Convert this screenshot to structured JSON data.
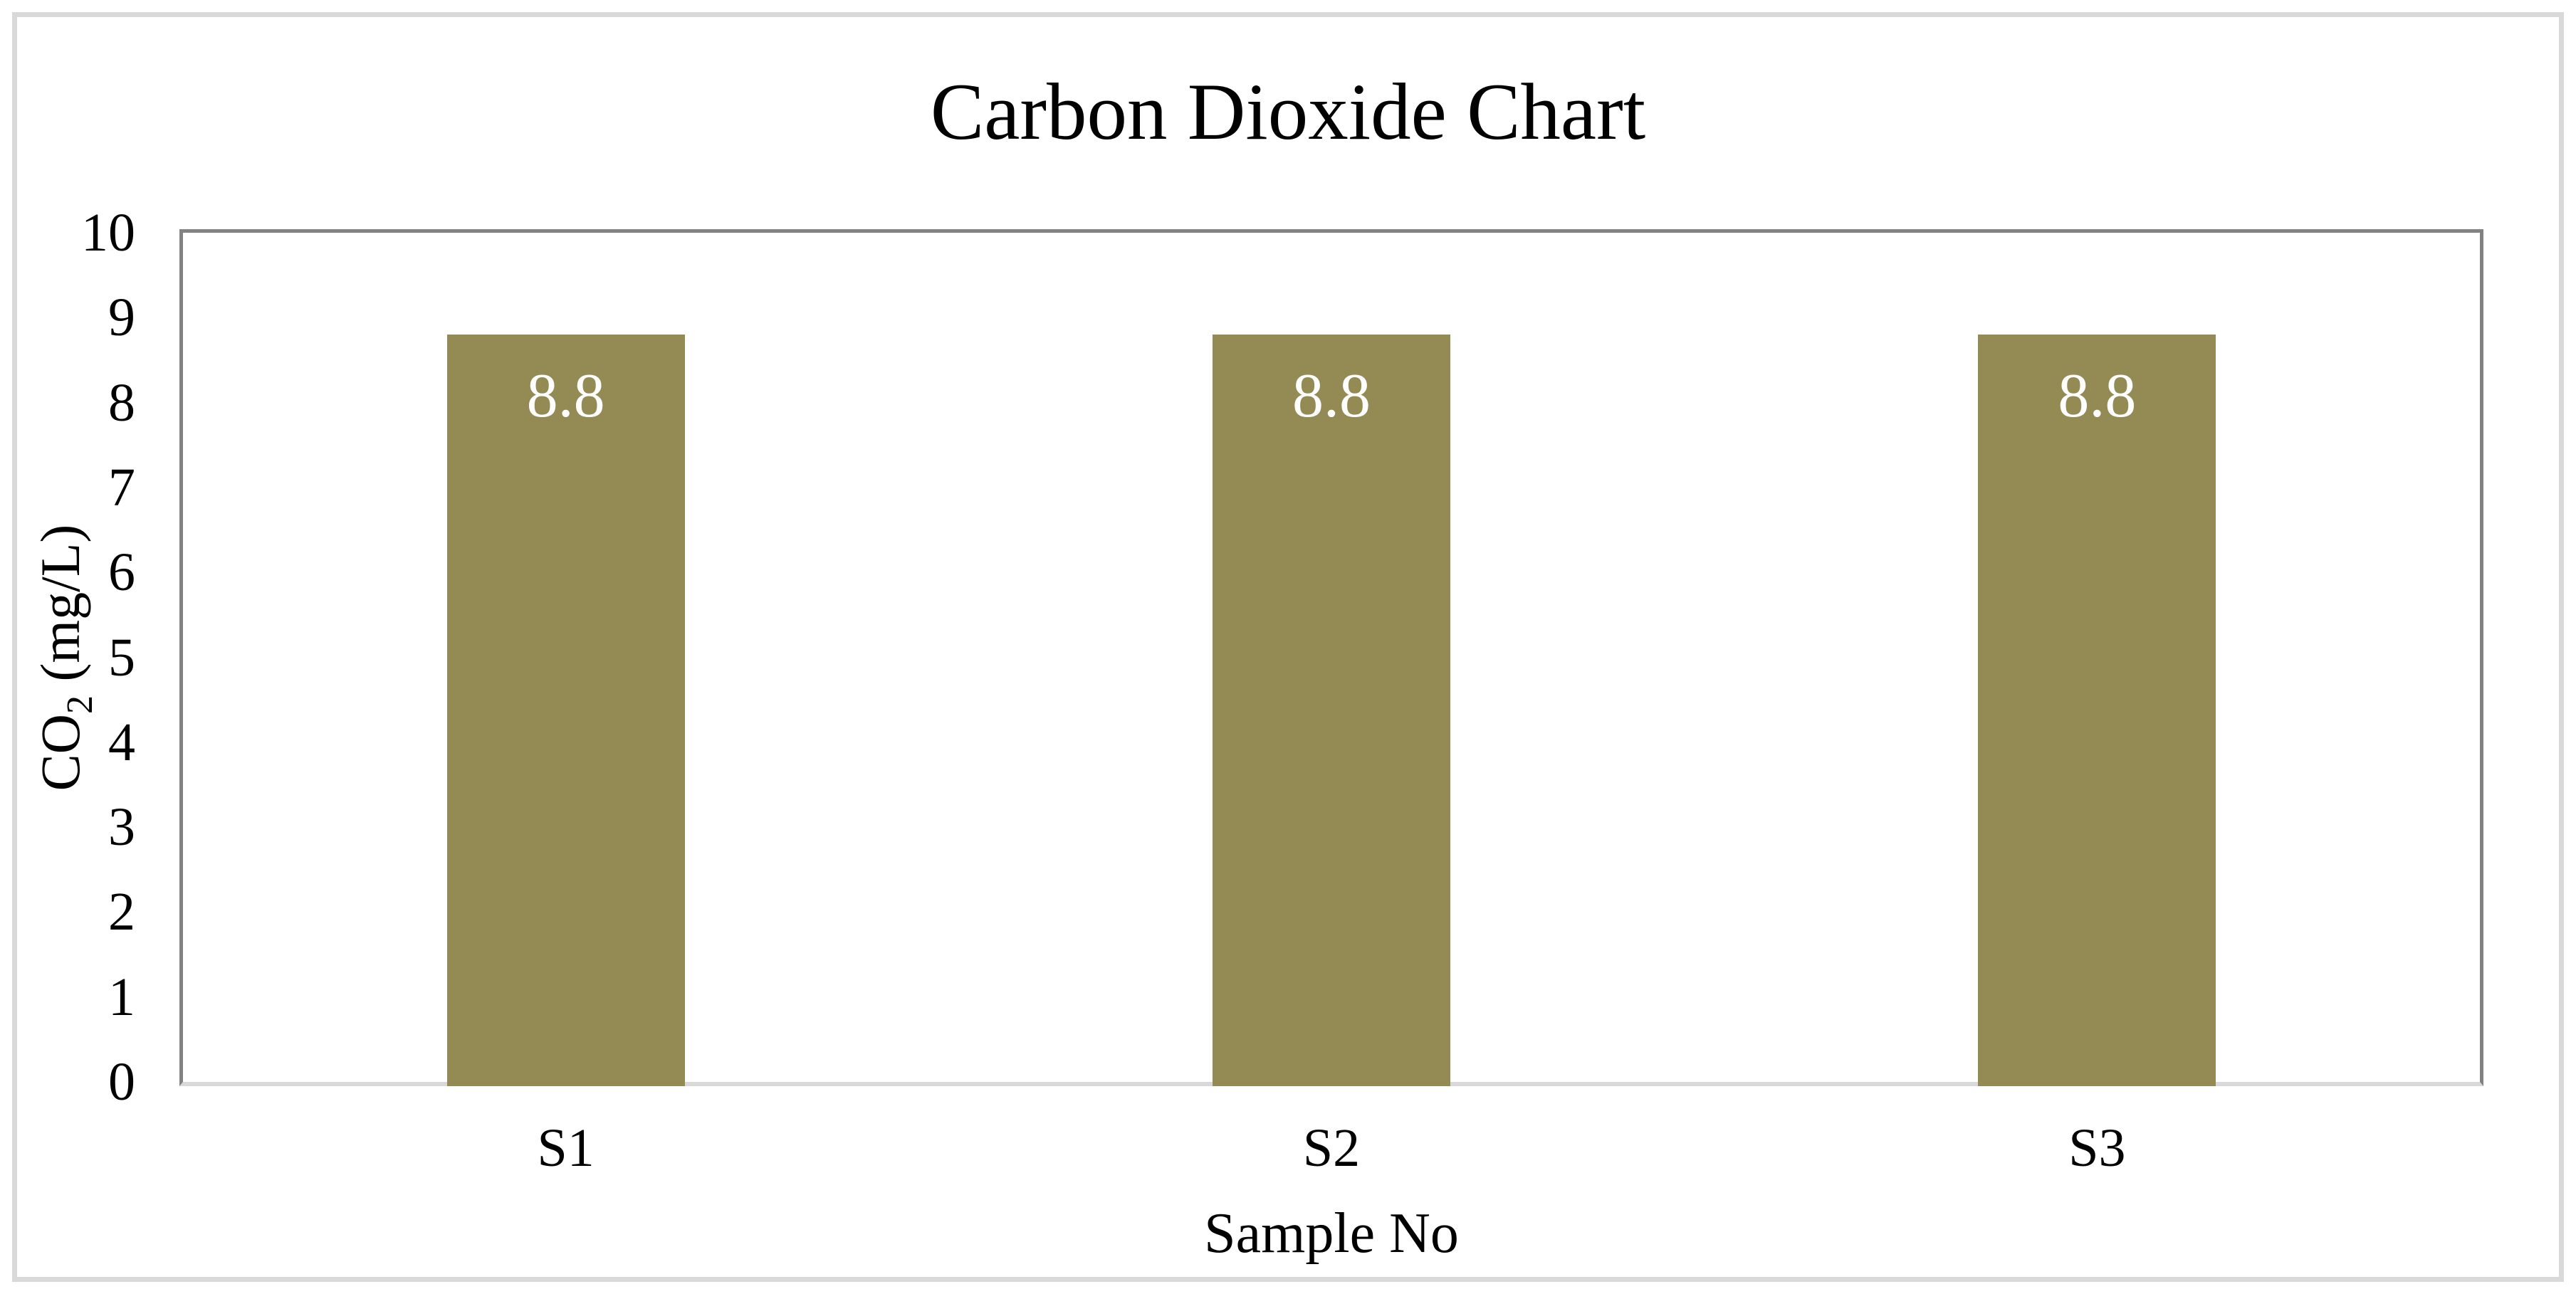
{
  "chart_data": {
    "type": "bar",
    "title": "Carbon Dioxide Chart",
    "categories": [
      "S1",
      "S2",
      "S3"
    ],
    "values": [
      8.8,
      8.8,
      8.8
    ],
    "data_labels": [
      "8.8",
      "8.8",
      "8.8"
    ],
    "xlabel": "Sample No",
    "ylabel": "CO2 (mg/L)",
    "ylabel_parts": {
      "base": "CO",
      "sub": "2",
      "rest": " (mg/L)"
    },
    "ylim": [
      0,
      10
    ],
    "ytick_step": 1,
    "yticks": [
      "0",
      "1",
      "2",
      "3",
      "4",
      "5",
      "6",
      "7",
      "8",
      "9",
      "10"
    ],
    "grid": false,
    "legend": false,
    "bar_color": "#948A54",
    "data_label_color": "#FFFFFF",
    "axis_line_color": "#828282",
    "baseline_color": "#D9D9D9",
    "outer_border_color": "#D9D9D9",
    "text_color": "#000000",
    "background_color": "#FFFFFF"
  }
}
